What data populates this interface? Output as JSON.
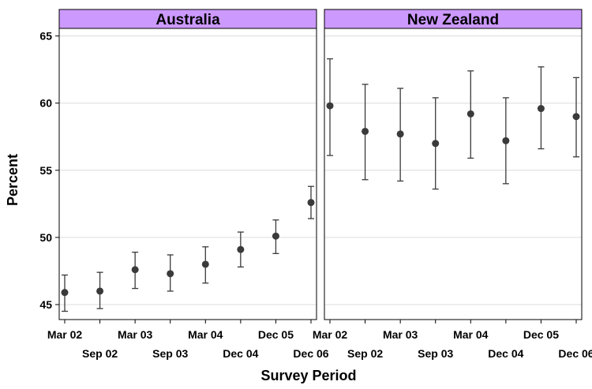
{
  "chart_data": {
    "type": "errorbar",
    "xlabel": "Survey Period",
    "ylabel": "Percent",
    "ylim": [
      44,
      66
    ],
    "yticks": [
      45,
      50,
      55,
      60,
      65
    ],
    "categories": [
      "Mar 02",
      "Sep 02",
      "Mar 03",
      "Sep 03",
      "Mar 04",
      "Dec 04",
      "Dec 05",
      "Dec 06"
    ],
    "grid": "horizontal",
    "strip_color": "#cc99ff",
    "marker_color": "#3a3a3a",
    "panels": [
      {
        "name": "Australia",
        "values": [
          45.9,
          46.0,
          47.6,
          47.3,
          48.0,
          49.1,
          50.1,
          52.6
        ],
        "lower": [
          44.5,
          44.7,
          46.2,
          46.0,
          46.6,
          47.8,
          48.8,
          51.4
        ],
        "upper": [
          47.2,
          47.4,
          48.9,
          48.7,
          49.3,
          50.4,
          51.3,
          53.8
        ]
      },
      {
        "name": "New Zealand",
        "values": [
          59.8,
          57.9,
          57.7,
          57.0,
          59.2,
          57.2,
          59.6,
          59.0
        ],
        "lower": [
          56.1,
          54.3,
          54.2,
          53.6,
          55.9,
          54.0,
          56.6,
          56.0
        ],
        "upper": [
          63.3,
          61.4,
          61.1,
          60.4,
          62.4,
          60.4,
          62.7,
          61.9
        ]
      }
    ]
  }
}
